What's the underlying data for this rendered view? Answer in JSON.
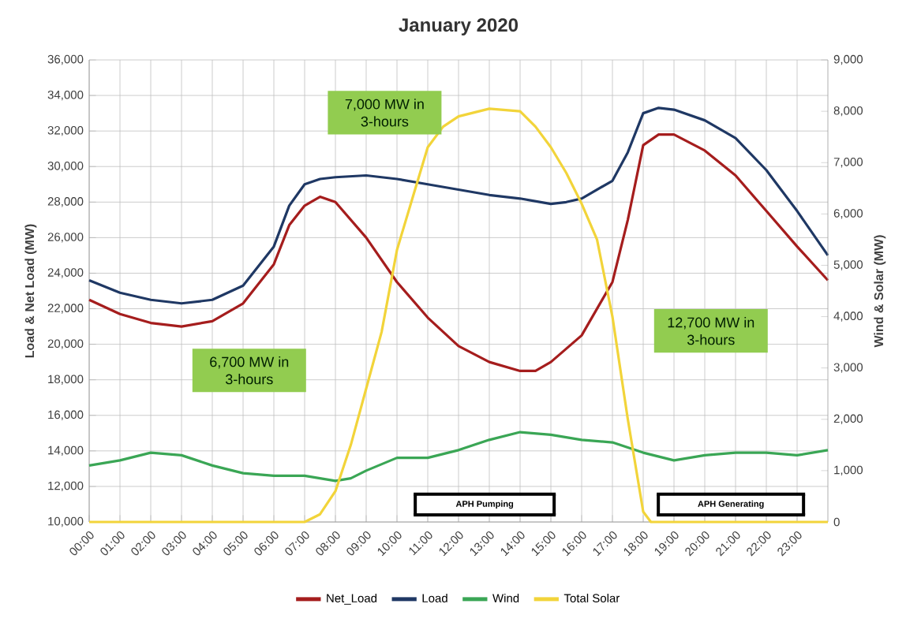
{
  "chart_data": {
    "type": "line",
    "title": "January 2020",
    "ylabel": "Load & Net Load (MW)",
    "y2label": "Wind & Solar (MW)",
    "xlim": [
      0,
      24
    ],
    "xticks": [
      {
        "value": 0,
        "label": "00:00"
      },
      {
        "value": 1,
        "label": "01:00"
      },
      {
        "value": 2,
        "label": "02:00"
      },
      {
        "value": 3,
        "label": "03:00"
      },
      {
        "value": 4,
        "label": "04:00"
      },
      {
        "value": 5,
        "label": "05:00"
      },
      {
        "value": 6,
        "label": "06:00"
      },
      {
        "value": 7,
        "label": "07:00"
      },
      {
        "value": 8,
        "label": "08:00"
      },
      {
        "value": 9,
        "label": "09:00"
      },
      {
        "value": 10,
        "label": "10:00"
      },
      {
        "value": 11,
        "label": "11:00"
      },
      {
        "value": 12,
        "label": "12:00"
      },
      {
        "value": 13,
        "label": "13:00"
      },
      {
        "value": 14,
        "label": "14:00"
      },
      {
        "value": 15,
        "label": "15:00"
      },
      {
        "value": 16,
        "label": "16:00"
      },
      {
        "value": 17,
        "label": "17:00"
      },
      {
        "value": 18,
        "label": "18:00"
      },
      {
        "value": 19,
        "label": "19:00"
      },
      {
        "value": 20,
        "label": "20:00"
      },
      {
        "value": 21,
        "label": "21:00"
      },
      {
        "value": 22,
        "label": "22:00"
      },
      {
        "value": 23,
        "label": "23:00"
      }
    ],
    "ylim": [
      10000,
      36000
    ],
    "yticks": [
      {
        "value": 10000,
        "label": "10,000"
      },
      {
        "value": 12000,
        "label": "12,000"
      },
      {
        "value": 14000,
        "label": "14,000"
      },
      {
        "value": 16000,
        "label": "16,000"
      },
      {
        "value": 18000,
        "label": "18,000"
      },
      {
        "value": 20000,
        "label": "20,000"
      },
      {
        "value": 22000,
        "label": "22,000"
      },
      {
        "value": 24000,
        "label": "24,000"
      },
      {
        "value": 26000,
        "label": "26,000"
      },
      {
        "value": 28000,
        "label": "28,000"
      },
      {
        "value": 30000,
        "label": "30,000"
      },
      {
        "value": 32000,
        "label": "32,000"
      },
      {
        "value": 34000,
        "label": "34,000"
      },
      {
        "value": 36000,
        "label": "36,000"
      }
    ],
    "y2lim": [
      0,
      9000
    ],
    "y2ticks": [
      0,
      {
        "value": 1000,
        "label": "1,000"
      },
      {
        "value": 2000,
        "label": "2,000"
      },
      {
        "value": 3000,
        "label": "3,000"
      },
      {
        "value": 4000,
        "label": "4,000"
      },
      {
        "value": 5000,
        "label": "5,000"
      },
      {
        "value": 6000,
        "label": "6,000"
      },
      {
        "value": 7000,
        "label": "7,000"
      },
      {
        "value": 8000,
        "label": "8,000"
      },
      {
        "value": 9000,
        "label": "9,000"
      }
    ],
    "grid": true,
    "legend": "bottom",
    "line_style": "solid",
    "marker": "none",
    "series": [
      {
        "name": "Net_Load",
        "color": "#a51d1d",
        "x": [
          0,
          1,
          2,
          3,
          4,
          5,
          6,
          6.5,
          7,
          7.5,
          8,
          9,
          10,
          11,
          12,
          13,
          14,
          14.5,
          15,
          16,
          17,
          17.5,
          18,
          18.5,
          19,
          20,
          21,
          22,
          23,
          24
        ],
        "values": [
          22500,
          21700,
          21200,
          21000,
          21300,
          22300,
          24500,
          26700,
          27800,
          28300,
          28000,
          26000,
          23500,
          21500,
          19900,
          19000,
          18500,
          18500,
          19000,
          20500,
          23500,
          27000,
          31200,
          31800,
          31800,
          30900,
          29500,
          27500,
          25500,
          23600
        ]
      },
      {
        "name": "Load",
        "color": "#1f3864",
        "x": [
          0,
          1,
          2,
          3,
          4,
          5,
          6,
          6.5,
          7,
          7.5,
          8,
          9,
          10,
          11,
          12,
          13,
          14,
          15,
          15.5,
          16,
          17,
          17.5,
          18,
          18.5,
          19,
          20,
          21,
          22,
          23,
          24
        ],
        "values": [
          23600,
          22900,
          22500,
          22300,
          22500,
          23300,
          25500,
          27800,
          29000,
          29300,
          29400,
          29500,
          29300,
          29000,
          28700,
          28400,
          28200,
          27900,
          28000,
          28200,
          29200,
          30800,
          33000,
          33300,
          33200,
          32600,
          31600,
          29800,
          27500,
          25000
        ]
      },
      {
        "name": "Wind",
        "color": "#3aa655",
        "axis": "y2",
        "x": [
          0,
          1,
          2,
          3,
          4,
          5,
          6,
          7,
          8,
          8.5,
          9,
          10,
          11,
          12,
          13,
          14,
          15,
          16,
          17,
          18,
          19,
          20,
          21,
          22,
          23,
          24
        ],
        "values": [
          1100,
          1200,
          1350,
          1300,
          1100,
          950,
          900,
          900,
          800,
          850,
          1000,
          1250,
          1250,
          1400,
          1600,
          1750,
          1700,
          1600,
          1550,
          1350,
          1200,
          1300,
          1350,
          1350,
          1300,
          1400
        ]
      },
      {
        "name": "Total Solar",
        "color": "#f2d43a",
        "axis": "y2",
        "x": [
          0,
          7,
          7.5,
          8,
          8.5,
          9,
          9.5,
          10,
          10.5,
          11,
          11.5,
          12,
          13,
          14,
          14.5,
          15,
          15.5,
          16,
          16.5,
          17,
          17.5,
          18,
          18.25,
          24
        ],
        "values": [
          0,
          0,
          150,
          600,
          1500,
          2600,
          3700,
          5300,
          6300,
          7300,
          7700,
          7900,
          8050,
          8000,
          7700,
          7300,
          6800,
          6200,
          5500,
          4000,
          2000,
          200,
          0,
          0
        ]
      }
    ],
    "annotations": [
      "6,700 MW in 3-hours",
      "7,000 MW in 3-hours",
      "12,700 MW in 3-hours",
      "APH Pumping",
      "APH Generating"
    ]
  }
}
